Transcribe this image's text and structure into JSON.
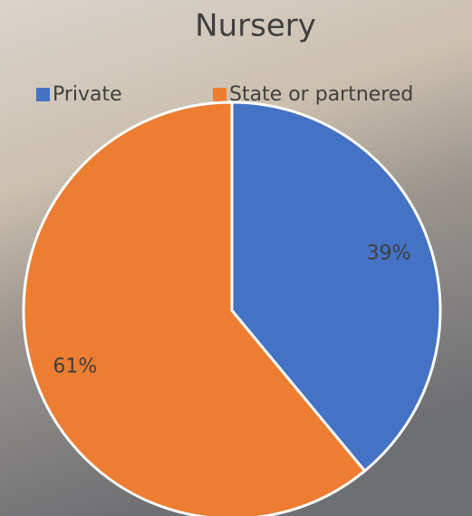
{
  "chart_data": {
    "type": "pie",
    "title": "Nursery",
    "categories": [
      "Private",
      "State or partnered"
    ],
    "values": [
      39,
      61
    ],
    "value_labels": [
      "39%",
      "61%"
    ],
    "colors": [
      "#4472c4",
      "#ed7d31"
    ],
    "legend": "top"
  }
}
